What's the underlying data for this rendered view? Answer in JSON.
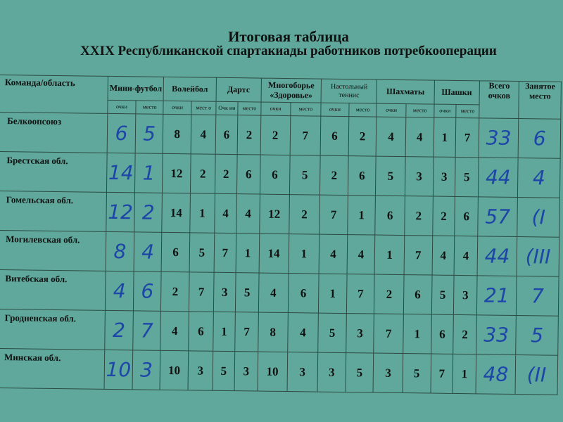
{
  "title": "Итоговая таблица",
  "subtitle": "XXIX Республиканской спартакиады работников потребкооперации",
  "columns": {
    "team": "Команда/область",
    "sports": [
      "Мини-футбол",
      "Волейбол",
      "Дартс",
      "Многоборье «Здоровье»",
      "Настольный теннис",
      "Шахматы",
      "Шашки"
    ],
    "sub": [
      [
        "очки",
        "место"
      ],
      [
        "очки",
        "мест о"
      ],
      [
        "Очк ии",
        "место"
      ],
      [
        "очки",
        "место"
      ],
      [
        "очки",
        "место"
      ],
      [
        "очки",
        "место"
      ],
      [
        "очки",
        "место"
      ]
    ],
    "total": "Всего очков",
    "place": "Занятое место"
  },
  "rows": [
    {
      "team": "Белкоопсоюз",
      "mf": [
        "6",
        "5"
      ],
      "scores": [
        "8",
        "4",
        "6",
        "2",
        "2",
        "7",
        "6",
        "2",
        "4",
        "4",
        "1",
        "7"
      ],
      "total": "33",
      "place": "6"
    },
    {
      "team": "Брестская обл.",
      "mf": [
        "14",
        "1"
      ],
      "scores": [
        "12",
        "2",
        "2",
        "6",
        "6",
        "5",
        "2",
        "6",
        "5",
        "3",
        "3",
        "5"
      ],
      "total": "44",
      "place": "4"
    },
    {
      "team": "Гомельская обл.",
      "mf": [
        "12",
        "2"
      ],
      "scores": [
        "14",
        "1",
        "4",
        "4",
        "12",
        "2",
        "7",
        "1",
        "6",
        "2",
        "2",
        "6"
      ],
      "total": "57",
      "place": "(I"
    },
    {
      "team": "Могилевская обл.",
      "mf": [
        "8",
        "4"
      ],
      "scores": [
        "6",
        "5",
        "7",
        "1",
        "14",
        "1",
        "4",
        "4",
        "1",
        "7",
        "4",
        "4"
      ],
      "total": "44",
      "place": "(III"
    },
    {
      "team": "Витебская обл.",
      "mf": [
        "4",
        "6"
      ],
      "scores": [
        "2",
        "7",
        "3",
        "5",
        "4",
        "6",
        "1",
        "7",
        "2",
        "6",
        "5",
        "3"
      ],
      "total": "21",
      "place": "7"
    },
    {
      "team": "Гродненская обл.",
      "mf": [
        "2",
        "7"
      ],
      "scores": [
        "4",
        "6",
        "1",
        "7",
        "8",
        "4",
        "5",
        "3",
        "7",
        "1",
        "6",
        "2"
      ],
      "total": "33",
      "place": "5"
    },
    {
      "team": "Минская обл.",
      "mf": [
        "10",
        "3"
      ],
      "scores": [
        "10",
        "3",
        "5",
        "3",
        "10",
        "3",
        "3",
        "5",
        "3",
        "5",
        "7",
        "1"
      ],
      "total": "48",
      "place": "(II"
    }
  ],
  "colors": {
    "paper": "#5fa89b",
    "ink": "#1d46a8"
  }
}
